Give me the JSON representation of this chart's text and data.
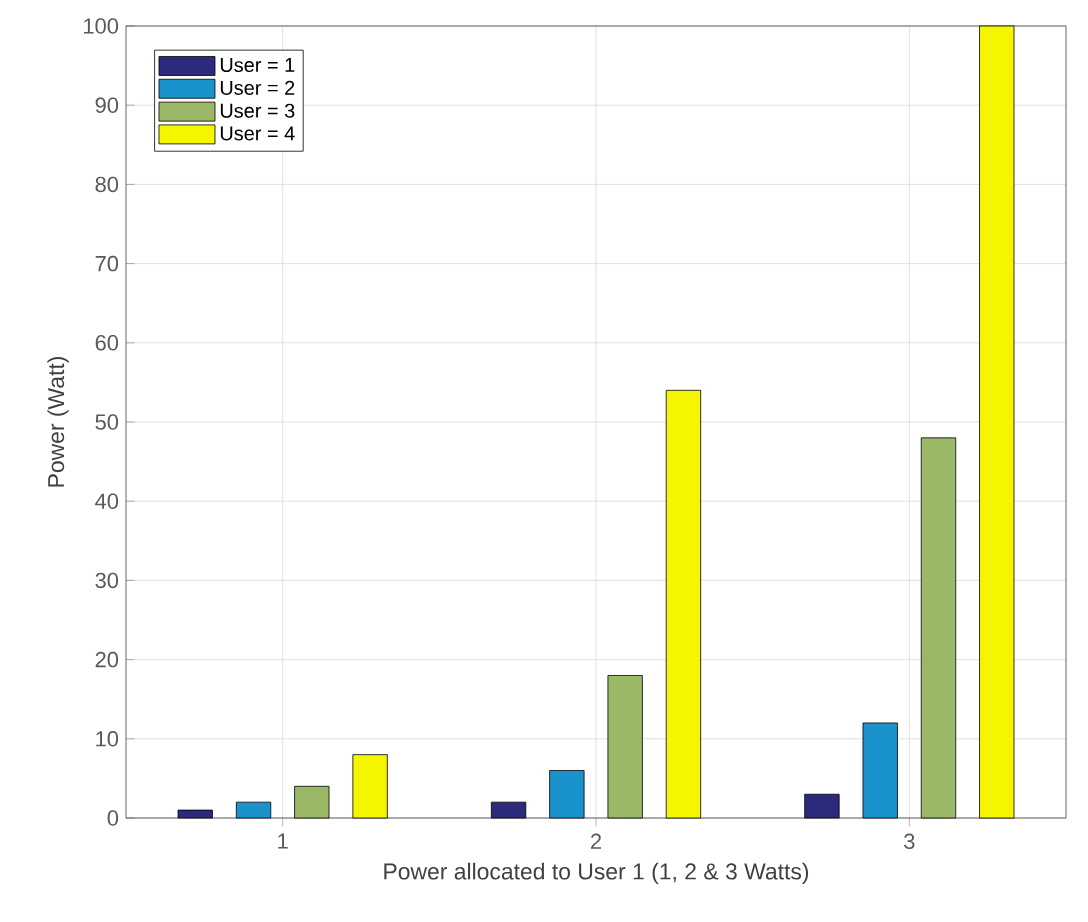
{
  "chart_data": {
    "type": "bar",
    "xlabel": "Power allocated to User 1 (1, 2 & 3 Watts)",
    "ylabel": "Power (Watt)",
    "categories": [
      "1",
      "2",
      "3"
    ],
    "series": [
      {
        "name": "User = 1",
        "color": "#2b2a7c",
        "values": [
          1,
          2,
          3
        ]
      },
      {
        "name": "User = 2",
        "color": "#1a93cc",
        "values": [
          2,
          6,
          12
        ]
      },
      {
        "name": "User = 3",
        "color": "#9bb866",
        "values": [
          4,
          18,
          48
        ]
      },
      {
        "name": "User = 4",
        "color": "#f5f500",
        "values": [
          8,
          54,
          100
        ]
      }
    ],
    "ylim": [
      0,
      100
    ],
    "yticks": [
      0,
      10,
      20,
      30,
      40,
      50,
      60,
      70,
      80,
      90,
      100
    ],
    "grid": true,
    "legend": "top left"
  }
}
